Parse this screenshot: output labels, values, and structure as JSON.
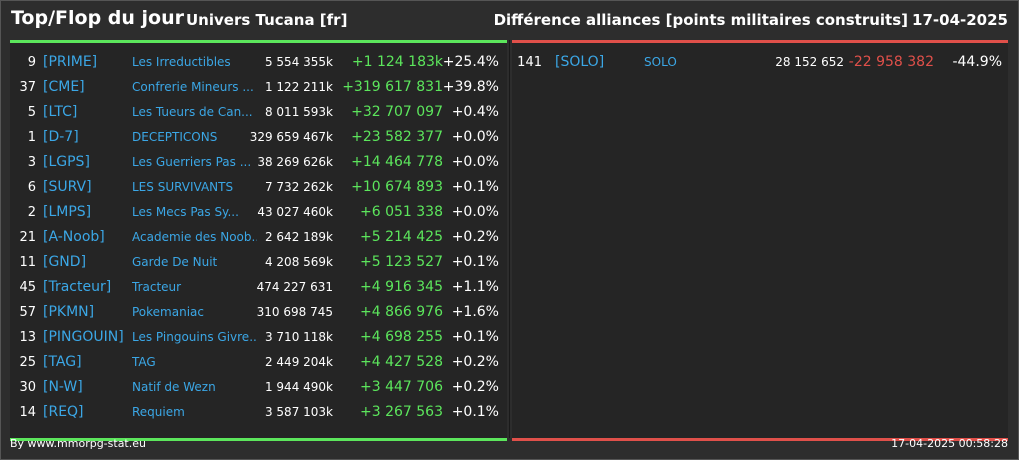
{
  "header": {
    "title": "Top/Flop du jour",
    "universe": "Univers Tucana [fr]",
    "subtitle": "Différence alliances [points militaires construits]",
    "date": "17-04-2025"
  },
  "colors": {
    "positive": "#5ce65c",
    "negative": "#e0504a",
    "tag_link": "#3ba7e6",
    "background": "#2d2d2d",
    "panel": "#252525"
  },
  "top": [
    {
      "rank": "9",
      "tag": "[PRIME]",
      "name": "Les Irreductibles",
      "total": "5 554 355k",
      "diff": "+1 124 183k",
      "pct": "+25.4%"
    },
    {
      "rank": "37",
      "tag": "[CME]",
      "name": "Confrerie Mineurs ...",
      "total": "1 122 211k",
      "diff": "+319 617 831",
      "pct": "+39.8%"
    },
    {
      "rank": "5",
      "tag": "[LTC]",
      "name": "Les Tueurs de Can...",
      "total": "8 011 593k",
      "diff": "+32 707 097",
      "pct": "+0.4%"
    },
    {
      "rank": "1",
      "tag": "[D-7]",
      "name": "DECEPTICONS",
      "total": "329 659 467k",
      "diff": "+23 582 377",
      "pct": "+0.0%"
    },
    {
      "rank": "3",
      "tag": "[LGPS]",
      "name": "Les Guerriers Pas ...",
      "total": "38 269 626k",
      "diff": "+14 464 778",
      "pct": "+0.0%"
    },
    {
      "rank": "6",
      "tag": "[SURV]",
      "name": "LES SURVIVANTS",
      "total": "7 732 262k",
      "diff": "+10 674 893",
      "pct": "+0.1%"
    },
    {
      "rank": "2",
      "tag": "[LMPS]",
      "name": "Les Mecs Pas Sy...",
      "total": "43 027 460k",
      "diff": "+6 051 338",
      "pct": "+0.0%"
    },
    {
      "rank": "21",
      "tag": "[A-Noob]",
      "name": "Academie des Noob...",
      "total": "2 642 189k",
      "diff": "+5 214 425",
      "pct": "+0.2%"
    },
    {
      "rank": "11",
      "tag": "[GND]",
      "name": "Garde De Nuit",
      "total": "4 208 569k",
      "diff": "+5 123 527",
      "pct": "+0.1%"
    },
    {
      "rank": "45",
      "tag": "[Tracteur]",
      "name": "Tracteur",
      "total": "474 227 631",
      "diff": "+4 916 345",
      "pct": "+1.1%"
    },
    {
      "rank": "57",
      "tag": "[PKMN]",
      "name": "Pokemaniac",
      "total": "310 698 745",
      "diff": "+4 866 976",
      "pct": "+1.6%"
    },
    {
      "rank": "13",
      "tag": "[PINGOUIN]",
      "name": "Les Pingouins Givre...",
      "total": "3 710 118k",
      "diff": "+4 698 255",
      "pct": "+0.1%"
    },
    {
      "rank": "25",
      "tag": "[TAG]",
      "name": "TAG",
      "total": "2 449 204k",
      "diff": "+4 427 528",
      "pct": "+0.2%"
    },
    {
      "rank": "30",
      "tag": "[N-W]",
      "name": "Natif de Wezn",
      "total": "1 944 490k",
      "diff": "+3 447 706",
      "pct": "+0.2%"
    },
    {
      "rank": "14",
      "tag": "[REQ]",
      "name": "Requiem",
      "total": "3 587 103k",
      "diff": "+3 267 563",
      "pct": "+0.1%"
    }
  ],
  "flop": [
    {
      "rank": "141",
      "tag": "[SOLO]",
      "name": "SOLO",
      "total": "28 152 652",
      "diff": "-22 958 382",
      "pct": "-44.9%"
    }
  ],
  "footer": {
    "source": "By www.mmorpg-stat.eu",
    "timestamp": "17-04-2025 00:58:28"
  }
}
